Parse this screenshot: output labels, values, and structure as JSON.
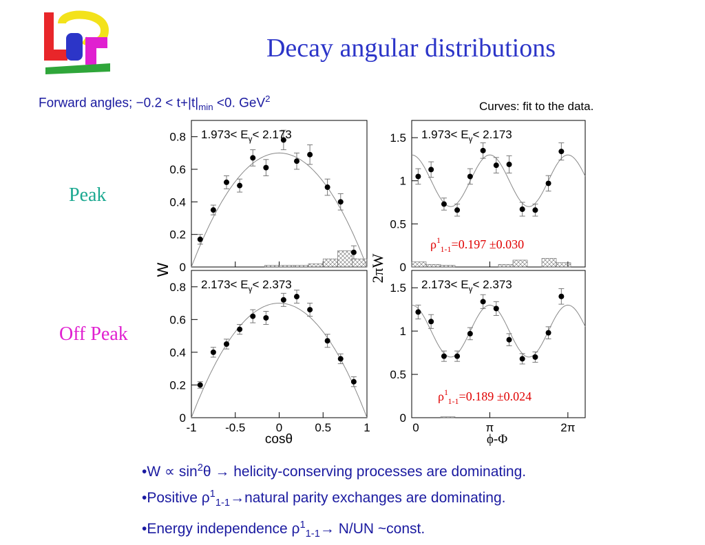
{
  "slide": {
    "title": "Decay angular distributions",
    "subtitle": {
      "pre": "Forward angles; −0.2 < t+|t|",
      "sub": "min",
      "post": " <0. GeV",
      "sup": "2"
    },
    "note": "Curves: fit to the data.",
    "row_labels": [
      "Peak",
      "Off Peak"
    ],
    "bullets": [
      {
        "parts": [
          "•W ∝ sin",
          "2",
          "θ → helicity-conserving processes are dominating."
        ]
      },
      {
        "parts": [
          "•Positive ρ",
          "1",
          "1-1",
          "→natural parity exchanges are dominating."
        ]
      },
      {
        "parts": [
          "•Energy independence ρ",
          "1",
          "1-1",
          "→ N/UN ~const."
        ]
      }
    ],
    "logo_letters": "LEPS",
    "colors": {
      "title": "#2c35c8",
      "subtitle": "#1a1aa0",
      "peak": "#1aa890",
      "offpeak": "#e020d0",
      "rho": "#e00000"
    }
  },
  "axes_text": {
    "left_ylabel": "W",
    "right_ylabel": "2πW",
    "left_xlabel": "cosθ",
    "right_xlabel": "ϕ-Φ",
    "left_xticks": [
      "-1",
      "-0.5",
      "0",
      "0.5",
      "1"
    ],
    "right_xticks": [
      "0",
      "π",
      "2π"
    ],
    "left_yticks": [
      "0",
      "0.2",
      "0.4",
      "0.6",
      "0.8"
    ],
    "right_yticks": [
      "0",
      "0.5",
      "1",
      "1.5"
    ]
  },
  "chart_data": [
    {
      "type": "scatter",
      "panel": "top-left",
      "energy_label": "1.973< Eγ< 2.173",
      "xlim": [
        -1,
        1
      ],
      "ylim": [
        0,
        0.9
      ],
      "x": [
        -0.9,
        -0.75,
        -0.6,
        -0.45,
        -0.3,
        -0.15,
        0.05,
        0.2,
        0.35,
        0.55,
        0.7,
        0.85
      ],
      "y": [
        0.17,
        0.35,
        0.52,
        0.5,
        0.67,
        0.61,
        0.78,
        0.65,
        0.69,
        0.49,
        0.4,
        0.09
      ],
      "err": [
        0.03,
        0.03,
        0.04,
        0.04,
        0.05,
        0.05,
        0.06,
        0.05,
        0.06,
        0.05,
        0.05,
        0.04
      ],
      "fit": {
        "form": "a*sin^2(theta)",
        "a": 0.7
      },
      "background": [
        0,
        0,
        0,
        0,
        0,
        0.01,
        0.01,
        0.01,
        0.02,
        0.05,
        0.1,
        0.05
      ]
    },
    {
      "type": "scatter",
      "panel": "top-right",
      "energy_label": "1.973< Eγ< 2.173",
      "xlim": [
        0,
        6.98
      ],
      "ylim": [
        0,
        1.7
      ],
      "x": [
        0.26,
        0.78,
        1.3,
        1.83,
        2.35,
        2.87,
        3.4,
        3.92,
        4.45,
        4.97,
        5.5,
        6.02
      ],
      "y": [
        1.05,
        1.13,
        0.73,
        0.66,
        1.05,
        1.35,
        1.18,
        1.19,
        0.67,
        0.66,
        0.97,
        1.34
      ],
      "err": [
        0.09,
        0.09,
        0.07,
        0.07,
        0.09,
        0.09,
        0.09,
        0.1,
        0.08,
        0.07,
        0.09,
        0.1
      ],
      "fit": {
        "form": "1 + A*cos(2x)",
        "A": 0.3
      },
      "annotation": {
        "rho": "ρ",
        "sup": "1",
        "sub": "1-1",
        "text": "=0.197 ±0.030"
      },
      "background": [
        0.06,
        0.03,
        0.02,
        0,
        0,
        0,
        0.03,
        0.08,
        0,
        0.1,
        0.05,
        0
      ]
    },
    {
      "type": "scatter",
      "panel": "bottom-left",
      "energy_label": "2.173< Eγ< 2.373",
      "xlim": [
        -1,
        1
      ],
      "ylim": [
        0,
        0.9
      ],
      "x": [
        -0.9,
        -0.75,
        -0.6,
        -0.45,
        -0.3,
        -0.15,
        0.05,
        0.2,
        0.35,
        0.55,
        0.7,
        0.85
      ],
      "y": [
        0.2,
        0.4,
        0.45,
        0.54,
        0.62,
        0.61,
        0.72,
        0.74,
        0.66,
        0.47,
        0.36,
        0.22
      ],
      "err": [
        0.02,
        0.03,
        0.03,
        0.03,
        0.04,
        0.04,
        0.04,
        0.04,
        0.04,
        0.04,
        0.03,
        0.03
      ],
      "fit": {
        "form": "a*sin^2(theta)",
        "a": 0.7
      },
      "background": [
        0,
        0,
        0,
        0,
        0,
        0,
        0,
        0,
        0,
        0,
        0,
        0
      ]
    },
    {
      "type": "scatter",
      "panel": "bottom-right",
      "energy_label": "2.173< Eγ< 2.373",
      "xlim": [
        0,
        6.98
      ],
      "ylim": [
        0,
        1.7
      ],
      "x": [
        0.26,
        0.78,
        1.3,
        1.83,
        2.35,
        2.87,
        3.4,
        3.92,
        4.45,
        4.97,
        5.5,
        6.02
      ],
      "y": [
        1.22,
        1.11,
        0.71,
        0.71,
        0.97,
        1.34,
        1.26,
        0.9,
        0.68,
        0.7,
        0.98,
        1.4
      ],
      "err": [
        0.08,
        0.08,
        0.06,
        0.06,
        0.07,
        0.08,
        0.08,
        0.07,
        0.06,
        0.06,
        0.07,
        0.09
      ],
      "fit": {
        "form": "1 + A*cos(2x)",
        "A": 0.3
      },
      "annotation": {
        "rho": "ρ",
        "sup": "1",
        "sub": "1-1",
        "text": "=0.189 ±0.024"
      },
      "background": [
        0,
        0,
        0.01,
        0,
        0,
        0,
        0,
        0,
        0,
        0,
        0,
        0
      ]
    }
  ]
}
